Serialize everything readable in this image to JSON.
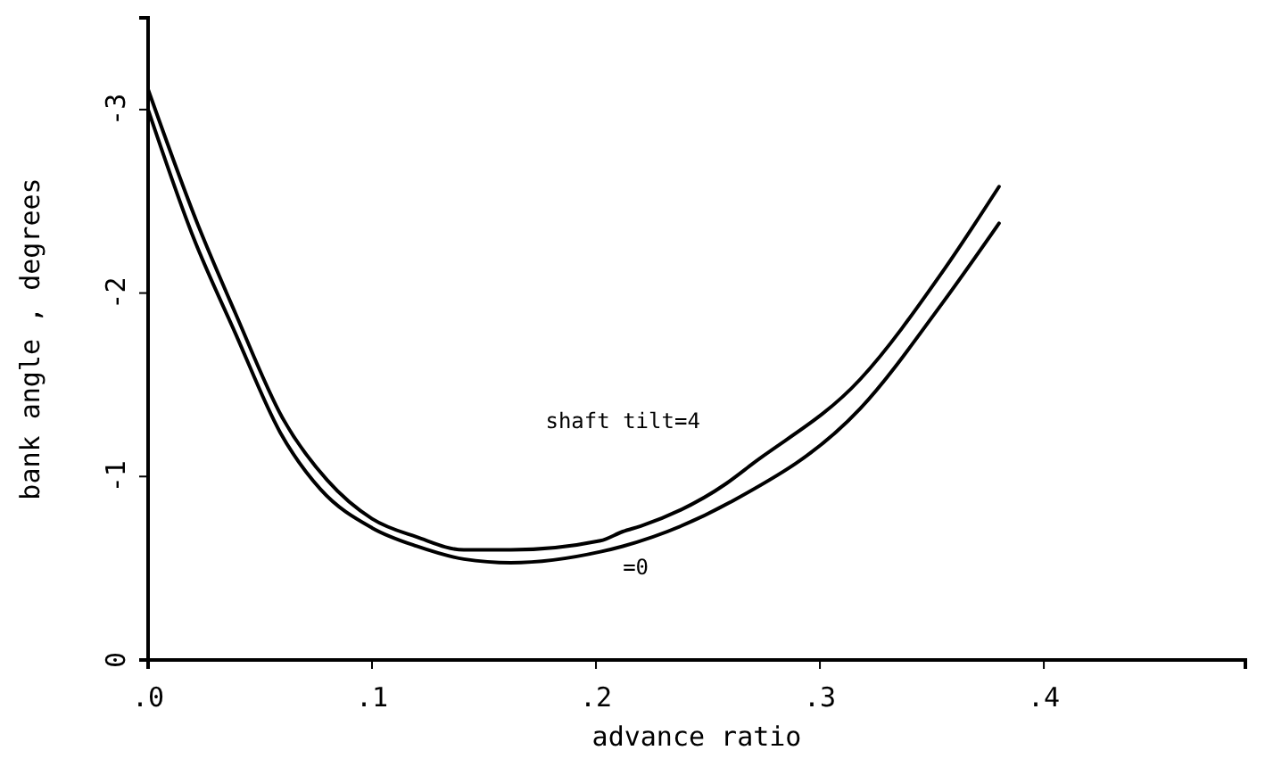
{
  "chart_data": {
    "type": "line",
    "xlabel": "advance ratio",
    "ylabel": "bank angle , degrees",
    "xlim": [
      0,
      0.49
    ],
    "ylim": [
      0,
      -3.5
    ],
    "xticks": [
      {
        "value": 0,
        "label": ".0"
      },
      {
        "value": 0.1,
        "label": ".1"
      },
      {
        "value": 0.2,
        "label": ".2"
      },
      {
        "value": 0.3,
        "label": ".3"
      },
      {
        "value": 0.4,
        "label": ".4"
      }
    ],
    "yticks": [
      0,
      -1,
      -2,
      -3
    ],
    "grid": false,
    "legend": false,
    "marker": "none",
    "line_style": "solid",
    "series": [
      {
        "name": "shaft tilt=4",
        "color": "#000000",
        "x": [
          0,
          0.022,
          0.039,
          0.06,
          0.08,
          0.1,
          0.12,
          0.141,
          0.162,
          0.202,
          0.212,
          0.22,
          0.258,
          0.27,
          0.318,
          0.355,
          0.38
        ],
        "values": [
          -3.11,
          -2.38,
          -1.89,
          -1.32,
          -0.98,
          -0.77,
          -0.67,
          -0.6,
          -0.6,
          -0.65,
          -0.7,
          -0.73,
          -0.96,
          -1.07,
          -1.53,
          -2.12,
          -2.58
        ]
      },
      {
        "name": "=0",
        "color": "#000000",
        "x": [
          0,
          0.02,
          0.039,
          0.059,
          0.077,
          0.1,
          0.12,
          0.141,
          0.162,
          0.202,
          0.212,
          0.26,
          0.318,
          0.355,
          0.38
        ],
        "values": [
          -3.0,
          -2.31,
          -1.78,
          -1.24,
          -0.93,
          -0.72,
          -0.62,
          -0.55,
          -0.53,
          -0.59,
          -0.62,
          -0.86,
          -1.37,
          -1.95,
          -2.38
        ]
      }
    ]
  }
}
